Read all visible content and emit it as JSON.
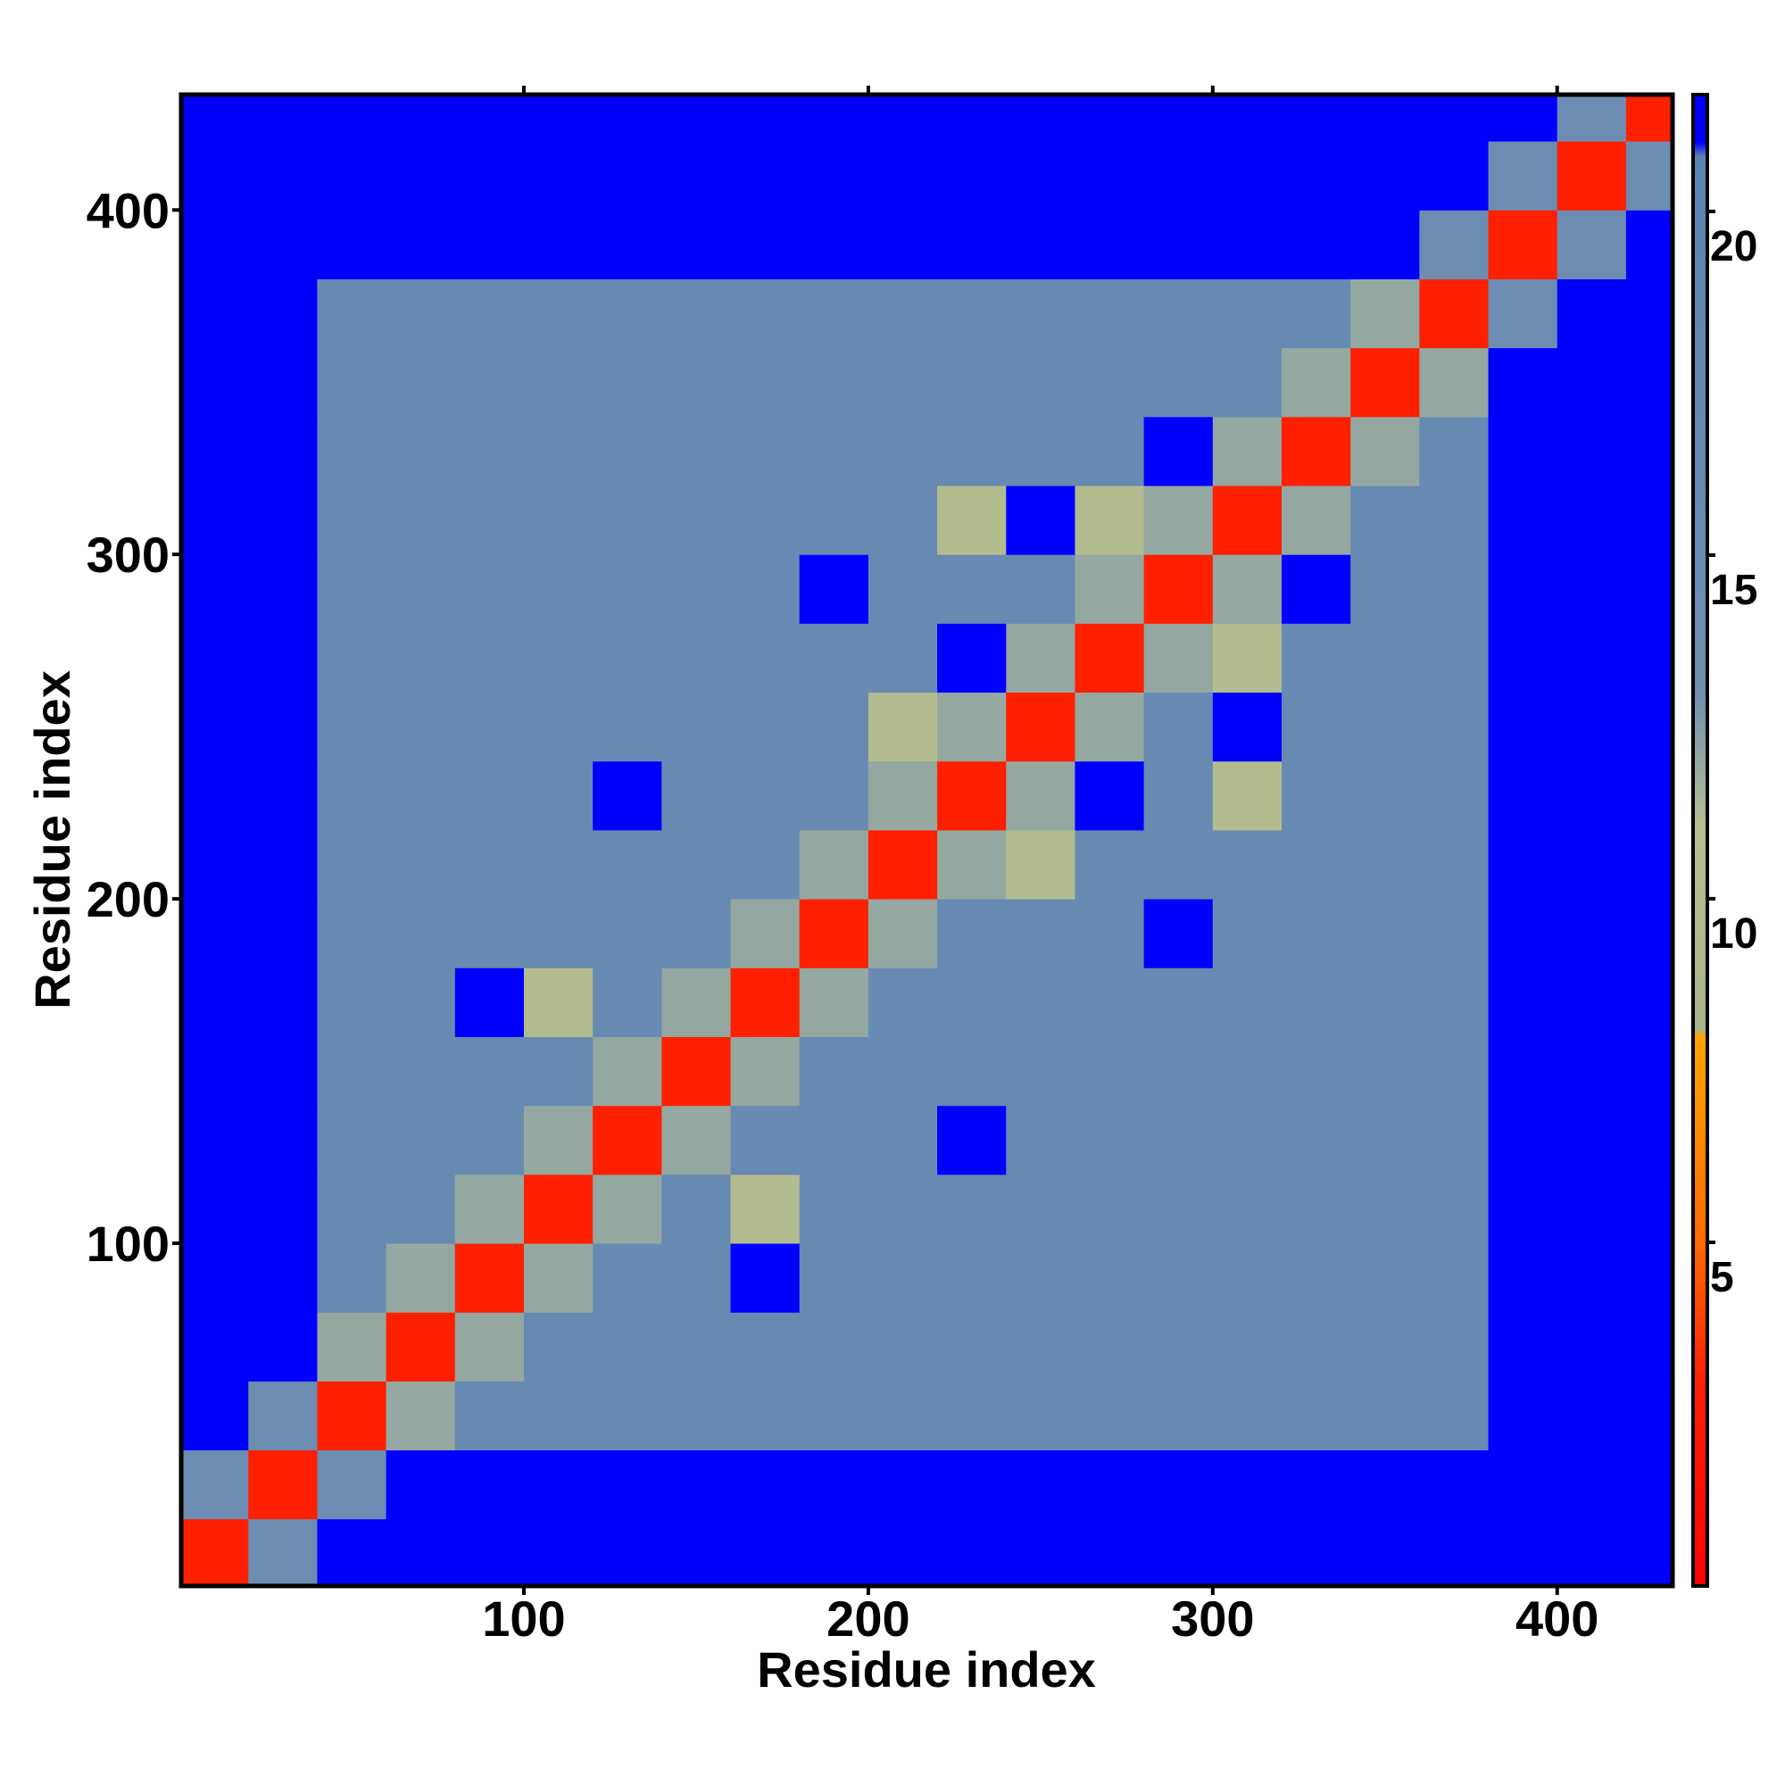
{
  "chart_data": {
    "type": "heatmap",
    "xlabel": "Residue index",
    "ylabel": "Residue index",
    "bins": [
      0,
      20,
      40,
      60,
      80,
      100,
      120,
      140,
      160,
      180,
      200,
      220,
      240,
      260,
      280,
      300,
      320,
      340,
      360,
      380,
      400,
      420,
      440
    ],
    "xlim": [
      0.5,
      433.5
    ],
    "ylim": [
      0.5,
      433.5
    ],
    "xticks": [
      100,
      200,
      300,
      400
    ],
    "yticks": [
      100,
      200,
      300,
      400
    ],
    "z": [
      [
        3,
        14,
        21,
        21,
        21,
        21,
        21,
        21,
        21,
        21,
        21,
        21,
        21,
        21,
        21,
        21,
        21,
        21,
        21,
        21,
        21,
        21
      ],
      [
        14,
        3,
        14,
        21,
        21,
        21,
        21,
        21,
        21,
        21,
        21,
        21,
        21,
        21,
        21,
        21,
        21,
        21,
        21,
        21,
        21,
        21
      ],
      [
        21,
        14,
        3,
        12,
        16,
        16,
        16,
        16,
        16,
        16,
        16,
        16,
        16,
        16,
        16,
        16,
        16,
        16,
        16,
        21,
        21,
        21
      ],
      [
        21,
        21,
        12,
        3,
        12,
        16,
        16,
        16,
        16,
        16,
        16,
        16,
        16,
        16,
        16,
        16,
        16,
        16,
        16,
        21,
        21,
        21
      ],
      [
        21,
        21,
        16,
        12,
        3,
        12,
        16,
        16,
        21,
        16,
        16,
        16,
        16,
        16,
        16,
        16,
        16,
        16,
        16,
        21,
        21,
        21
      ],
      [
        21,
        21,
        16,
        16,
        12,
        3,
        12,
        16,
        10,
        16,
        16,
        16,
        16,
        16,
        16,
        16,
        16,
        16,
        16,
        21,
        21,
        21
      ],
      [
        21,
        21,
        16,
        16,
        16,
        12,
        3,
        12,
        16,
        16,
        16,
        21,
        16,
        16,
        16,
        16,
        16,
        16,
        16,
        21,
        21,
        21
      ],
      [
        21,
        21,
        16,
        16,
        16,
        16,
        12,
        3,
        12,
        16,
        16,
        16,
        16,
        16,
        16,
        16,
        16,
        16,
        16,
        21,
        21,
        21
      ],
      [
        21,
        21,
        16,
        16,
        21,
        10,
        16,
        12,
        3,
        12,
        16,
        16,
        16,
        16,
        16,
        16,
        16,
        16,
        16,
        21,
        21,
        21
      ],
      [
        21,
        21,
        16,
        16,
        16,
        16,
        16,
        16,
        12,
        3,
        12,
        16,
        16,
        16,
        21,
        16,
        16,
        16,
        16,
        21,
        21,
        21
      ],
      [
        21,
        21,
        16,
        16,
        16,
        16,
        16,
        16,
        16,
        12,
        3,
        12,
        10,
        16,
        16,
        16,
        16,
        16,
        16,
        21,
        21,
        21
      ],
      [
        21,
        21,
        16,
        16,
        16,
        16,
        21,
        16,
        16,
        16,
        12,
        3,
        12,
        21,
        16,
        10,
        16,
        16,
        16,
        21,
        21,
        21
      ],
      [
        21,
        21,
        16,
        16,
        16,
        16,
        16,
        16,
        16,
        16,
        10,
        12,
        3,
        12,
        16,
        21,
        16,
        16,
        16,
        21,
        21,
        21
      ],
      [
        21,
        21,
        16,
        16,
        16,
        16,
        16,
        16,
        16,
        16,
        16,
        21,
        12,
        3,
        12,
        10,
        16,
        16,
        16,
        21,
        21,
        21
      ],
      [
        21,
        21,
        16,
        16,
        16,
        16,
        16,
        16,
        16,
        21,
        16,
        16,
        16,
        12,
        3,
        12,
        21,
        16,
        16,
        21,
        21,
        21
      ],
      [
        21,
        21,
        16,
        16,
        16,
        16,
        16,
        16,
        16,
        16,
        16,
        10,
        21,
        10,
        12,
        3,
        12,
        16,
        16,
        21,
        21,
        21
      ],
      [
        21,
        21,
        16,
        16,
        16,
        16,
        16,
        16,
        16,
        16,
        16,
        16,
        16,
        16,
        21,
        12,
        3,
        12,
        16,
        21,
        21,
        21
      ],
      [
        21,
        21,
        16,
        16,
        16,
        16,
        16,
        16,
        16,
        16,
        16,
        16,
        16,
        16,
        16,
        16,
        12,
        3,
        12,
        21,
        21,
        21
      ],
      [
        21,
        21,
        16,
        16,
        16,
        16,
        16,
        16,
        16,
        16,
        16,
        16,
        16,
        16,
        16,
        16,
        16,
        12,
        3,
        14,
        21,
        21
      ],
      [
        21,
        21,
        21,
        21,
        21,
        21,
        21,
        21,
        21,
        21,
        21,
        21,
        21,
        21,
        21,
        21,
        21,
        21,
        14,
        3,
        14,
        21
      ],
      [
        21,
        21,
        21,
        21,
        21,
        21,
        21,
        21,
        21,
        21,
        21,
        21,
        21,
        21,
        21,
        21,
        21,
        21,
        21,
        14,
        3,
        14
      ],
      [
        21,
        21,
        21,
        21,
        21,
        21,
        21,
        21,
        21,
        21,
        21,
        21,
        21,
        21,
        21,
        21,
        21,
        21,
        21,
        21,
        14,
        3
      ]
    ],
    "colorbar_lim": [
      0,
      21.7
    ],
    "colorbar_ticks": [
      5,
      10,
      15,
      20
    ],
    "colorscale": [
      [
        0,
        "#ff0000"
      ],
      [
        3,
        "#ff2000"
      ],
      [
        5,
        "#ff6a00"
      ],
      [
        8,
        "#ffa500"
      ],
      [
        8.1,
        "#a9b38a"
      ],
      [
        11,
        "#b8c092"
      ],
      [
        13,
        "#6f8fb0"
      ],
      [
        20.8,
        "#5b83b5"
      ],
      [
        21,
        "#0000ff"
      ]
    ]
  }
}
